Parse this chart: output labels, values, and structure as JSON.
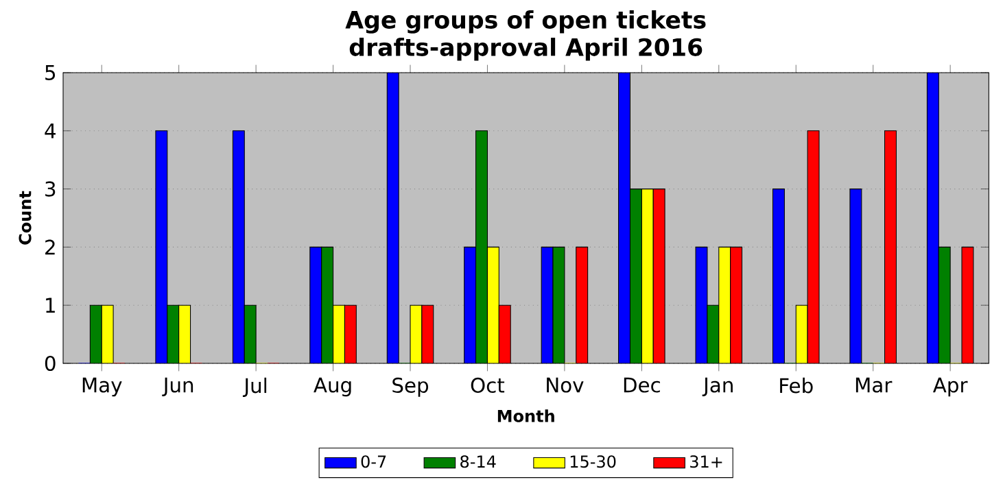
{
  "chart_data": {
    "type": "bar",
    "title": "Age groups of open tickets",
    "subtitle": "drafts-approval April 2016",
    "xlabel": "Month",
    "ylabel": "Count",
    "categories": [
      "May",
      "Jun",
      "Jul",
      "Aug",
      "Sep",
      "Oct",
      "Nov",
      "Dec",
      "Jan",
      "Feb",
      "Mar",
      "Apr"
    ],
    "series": [
      {
        "name": "0-7",
        "color": "#0000ff",
        "values": [
          0,
          4,
          4,
          2,
          5,
          2,
          2,
          5,
          2,
          3,
          3,
          5
        ]
      },
      {
        "name": "8-14",
        "color": "#008000",
        "values": [
          1,
          1,
          1,
          2,
          0,
          4,
          2,
          3,
          1,
          0,
          0,
          2
        ]
      },
      {
        "name": "15-30",
        "color": "#ffff00",
        "values": [
          1,
          1,
          0,
          1,
          1,
          2,
          0,
          3,
          2,
          1,
          0,
          0
        ]
      },
      {
        "name": "31+",
        "color": "#ff0000",
        "values": [
          0,
          0,
          0,
          1,
          1,
          1,
          2,
          3,
          2,
          4,
          4,
          2
        ]
      }
    ],
    "ylim": [
      0,
      5
    ],
    "yticks": [
      0,
      1,
      2,
      3,
      4,
      5
    ],
    "grid": "y",
    "legend": "bottom"
  }
}
